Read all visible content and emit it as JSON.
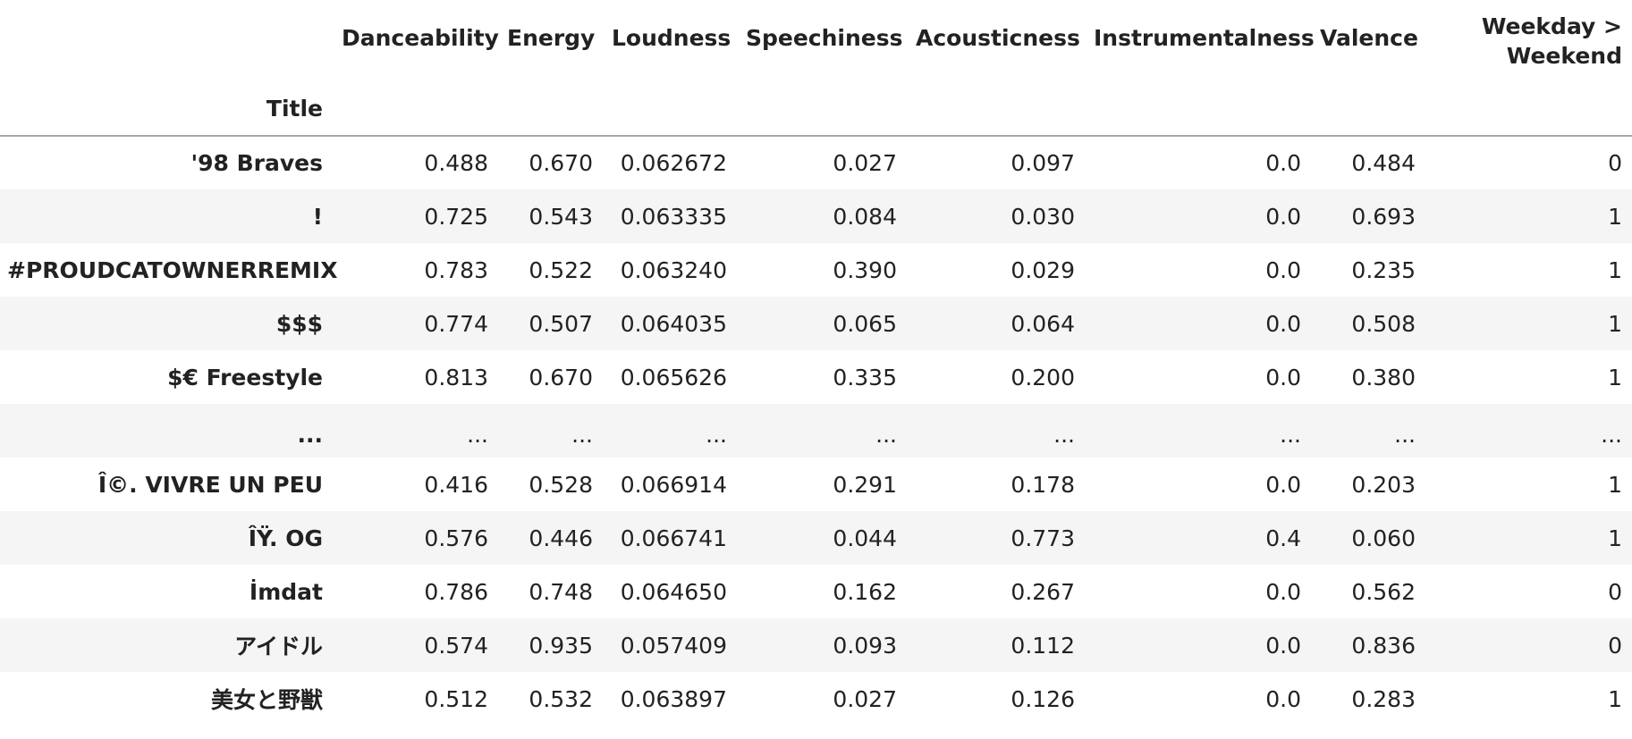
{
  "table": {
    "columns": [
      "Danceability",
      "Energy",
      "Loudness",
      "Speechiness",
      "Acousticness",
      "Instrumentalness",
      "Valence"
    ],
    "weekday_header_line1": "Weekday >",
    "weekday_header_line2": "Weekend",
    "index_name": "Title",
    "rows": [
      {
        "title": "'98 Braves",
        "values": [
          "0.488",
          "0.670",
          "0.062672",
          "0.027",
          "0.097",
          "0.0",
          "0.484",
          "0"
        ]
      },
      {
        "title": "!",
        "values": [
          "0.725",
          "0.543",
          "0.063335",
          "0.084",
          "0.030",
          "0.0",
          "0.693",
          "1"
        ]
      },
      {
        "title": "#PROUDCATOWNERREMIX",
        "values": [
          "0.783",
          "0.522",
          "0.063240",
          "0.390",
          "0.029",
          "0.0",
          "0.235",
          "1"
        ]
      },
      {
        "title": "$$$",
        "values": [
          "0.774",
          "0.507",
          "0.064035",
          "0.065",
          "0.064",
          "0.0",
          "0.508",
          "1"
        ]
      },
      {
        "title": "$€ Freestyle",
        "values": [
          "0.813",
          "0.670",
          "0.065626",
          "0.335",
          "0.200",
          "0.0",
          "0.380",
          "1"
        ]
      },
      {
        "title": "...",
        "values": [
          "...",
          "...",
          "...",
          "...",
          "...",
          "...",
          "...",
          "..."
        ]
      },
      {
        "title": "Î©. VIVRE UN PEU",
        "values": [
          "0.416",
          "0.528",
          "0.066914",
          "0.291",
          "0.178",
          "0.0",
          "0.203",
          "1"
        ]
      },
      {
        "title": "ÎŸ. OG",
        "values": [
          "0.576",
          "0.446",
          "0.066741",
          "0.044",
          "0.773",
          "0.4",
          "0.060",
          "1"
        ]
      },
      {
        "title": "İmdat",
        "values": [
          "0.786",
          "0.748",
          "0.064650",
          "0.162",
          "0.267",
          "0.0",
          "0.562",
          "0"
        ]
      },
      {
        "title": "アイドル",
        "values": [
          "0.574",
          "0.935",
          "0.057409",
          "0.093",
          "0.112",
          "0.0",
          "0.836",
          "0"
        ]
      },
      {
        "title": "美女と野獣",
        "values": [
          "0.512",
          "0.532",
          "0.063897",
          "0.027",
          "0.126",
          "0.0",
          "0.283",
          "1"
        ]
      }
    ]
  }
}
